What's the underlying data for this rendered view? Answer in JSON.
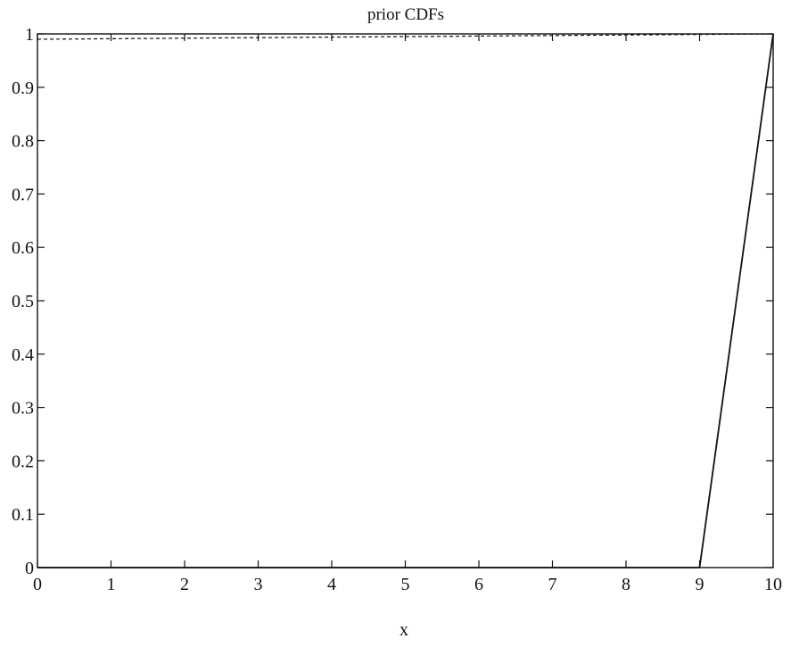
{
  "chart_data": {
    "type": "line",
    "title": "prior CDFs",
    "xlabel": "x",
    "ylabel": "",
    "xlim": [
      0,
      10
    ],
    "ylim": [
      0,
      1
    ],
    "x_ticks": [
      "0",
      "1",
      "2",
      "3",
      "4",
      "5",
      "6",
      "7",
      "8",
      "9",
      "10"
    ],
    "y_ticks": [
      "0",
      "0.1",
      "0.2",
      "0.3",
      "0.4",
      "0.5",
      "0.6",
      "0.7",
      "0.8",
      "0.9",
      "1"
    ],
    "grid": false,
    "legend": "none",
    "series": [
      {
        "style": "solid",
        "x": [
          0,
          9,
          10
        ],
        "y": [
          0,
          0,
          1
        ]
      },
      {
        "style": "dashed",
        "x": [
          0,
          10
        ],
        "y": [
          0.99,
          1
        ]
      }
    ]
  },
  "colors": {
    "axis": "#111111",
    "line": "#111111",
    "background": "#ffffff"
  }
}
